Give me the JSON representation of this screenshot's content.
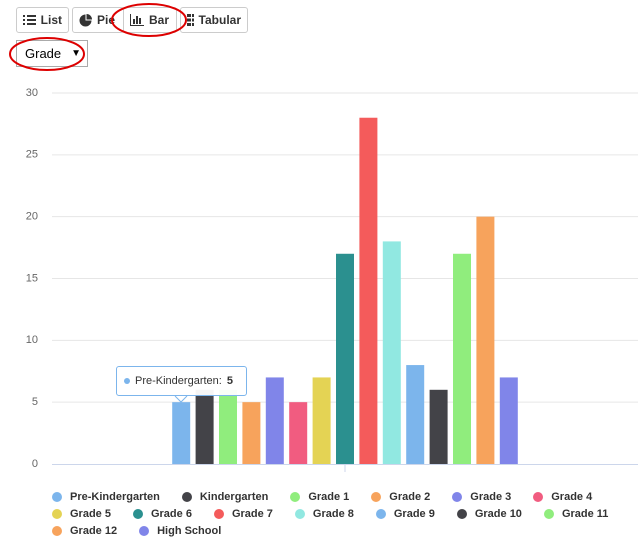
{
  "toolbar": {
    "buttons": [
      "List",
      "Pie",
      "Bar",
      "Tabular"
    ],
    "dropdown": "Grade"
  },
  "chart_data": {
    "type": "bar",
    "series": [
      {
        "name": "Pre-Kindergarten",
        "color": "#7cb5ec",
        "values": [
          5
        ]
      },
      {
        "name": "Kindergarten",
        "color": "#434348",
        "values": [
          6
        ]
      },
      {
        "name": "Grade 1",
        "color": "#90ed7d",
        "values": [
          6
        ]
      },
      {
        "name": "Grade 2",
        "color": "#f7a35c",
        "values": [
          5
        ]
      },
      {
        "name": "Grade 3",
        "color": "#8085e9",
        "values": [
          7
        ]
      },
      {
        "name": "Grade 4",
        "color": "#f15c80",
        "values": [
          5
        ]
      },
      {
        "name": "Grade 5",
        "color": "#e4d354",
        "values": [
          7
        ]
      },
      {
        "name": "Grade 6",
        "color": "#2b908f",
        "values": [
          17
        ]
      },
      {
        "name": "Grade 7",
        "color": "#f45b5b",
        "values": [
          28
        ]
      },
      {
        "name": "Grade 8",
        "color": "#91e8e1",
        "values": [
          18
        ]
      },
      {
        "name": "Grade 9",
        "color": "#7cb5ec",
        "values": [
          8
        ]
      },
      {
        "name": "Grade 10",
        "color": "#434348",
        "values": [
          6
        ]
      },
      {
        "name": "Grade 11",
        "color": "#90ed7d",
        "values": [
          17
        ]
      },
      {
        "name": "Grade 12",
        "color": "#f7a35c",
        "values": [
          20
        ]
      },
      {
        "name": "High School",
        "color": "#8085e9",
        "values": [
          7
        ]
      }
    ],
    "ylim": [
      0,
      30
    ],
    "yticks": [
      0,
      5,
      10,
      15,
      20,
      25,
      30
    ],
    "grid": true,
    "tooltip": {
      "label": "Pre-Kindergarten:",
      "value": 5
    }
  }
}
